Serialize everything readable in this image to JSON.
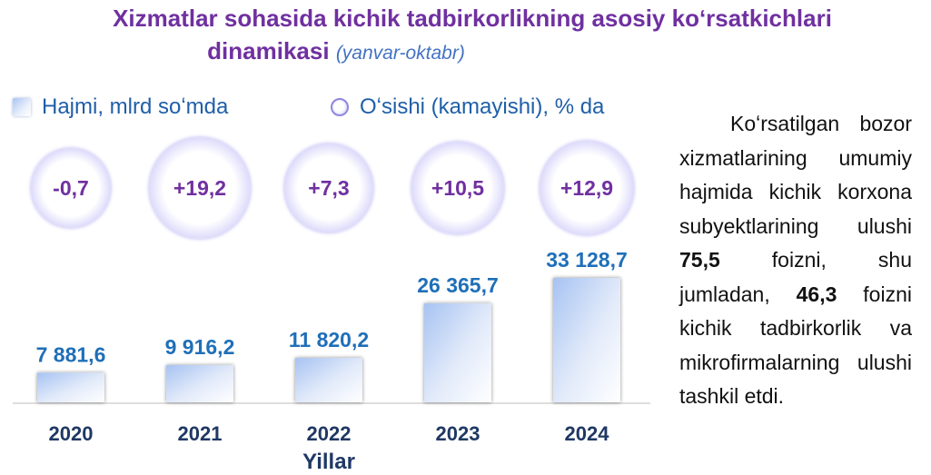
{
  "title": {
    "line1": "Xizmatlar sohasida kichik tadbirkorlikning asosiy koʻrsatkichlari",
    "line2": "dinamikasi",
    "subtitle": "(yanvar-oktabr)"
  },
  "legend": {
    "volume": "Hajmi, mlrd soʻmda",
    "growth": "Oʻsishi (kamayishi), % da"
  },
  "colors": {
    "title": "#7030a0",
    "value_label": "#1f6fb8",
    "category_label": "#1f3864",
    "growth_text": "#7030a0"
  },
  "chart_data": {
    "type": "bar",
    "xlabel": "Yillar",
    "categories": [
      "2020",
      "2021",
      "2022",
      "2023",
      "2024"
    ],
    "series": [
      {
        "name": "Hajmi, mlrd soʻmda",
        "values": [
          7881.6,
          9916.2,
          11820.2,
          26365.7,
          33128.7
        ],
        "labels": [
          "7 881,6",
          "9 916,2",
          "11 820,2",
          "26 365,7",
          "33 128,7"
        ]
      },
      {
        "name": "Oʻsishi (kamayishi), % da",
        "values": [
          -0.7,
          19.2,
          7.3,
          10.5,
          12.9
        ],
        "labels": [
          "-0,7",
          "+19,2",
          "+7,3",
          "+10,5",
          "+12,9"
        ]
      }
    ]
  },
  "side_text": {
    "intro": "Koʻrsatilgan bozor xizmatlarining umumiy hajmida kichik korxona subyektlarining ulushi ",
    "value1": "75,5",
    "middle": " foizni, shu jumladan, ",
    "value2": "46,3",
    "end": " foizni kichik tadbirkorlik va mikrofirmalarning ulushi tashkil etdi."
  }
}
